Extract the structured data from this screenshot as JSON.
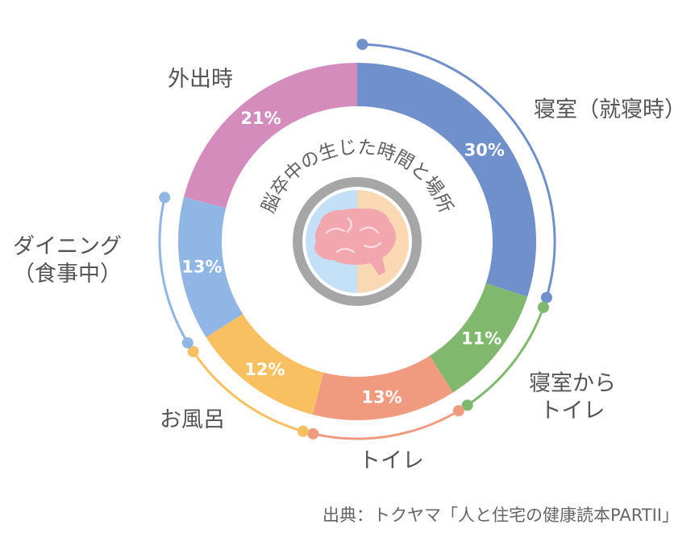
{
  "chart_data": {
    "type": "pie",
    "style": "donut",
    "title": "脳卒中の生じた時間と場所",
    "source": "出典：トクヤマ「人と住宅の健康読本PARTII」",
    "center_icon": "brain-icon",
    "slices": [
      {
        "id": "bedroom",
        "label_lines": [
          "寝室（就寝時）"
        ],
        "value": 30,
        "value_label": "30%",
        "color": "#7090cc"
      },
      {
        "id": "bedroom-toilet",
        "label_lines": [
          "寝室から",
          "トイレ"
        ],
        "value": 11,
        "value_label": "11%",
        "color": "#80b86e"
      },
      {
        "id": "toilet",
        "label_lines": [
          "トイレ"
        ],
        "value": 13,
        "value_label": "13%",
        "color": "#f09a80"
      },
      {
        "id": "bath",
        "label_lines": [
          "お風呂"
        ],
        "value": 12,
        "value_label": "12%",
        "color": "#f8c060"
      },
      {
        "id": "dining",
        "label_lines": [
          "ダイニング",
          "（食事中）"
        ],
        "value": 13,
        "value_label": "13%",
        "color": "#90b6e6"
      },
      {
        "id": "outside",
        "label_lines": [
          "外出時"
        ],
        "value": 21,
        "value_label": "21%",
        "color": "#d48cbc"
      }
    ]
  }
}
